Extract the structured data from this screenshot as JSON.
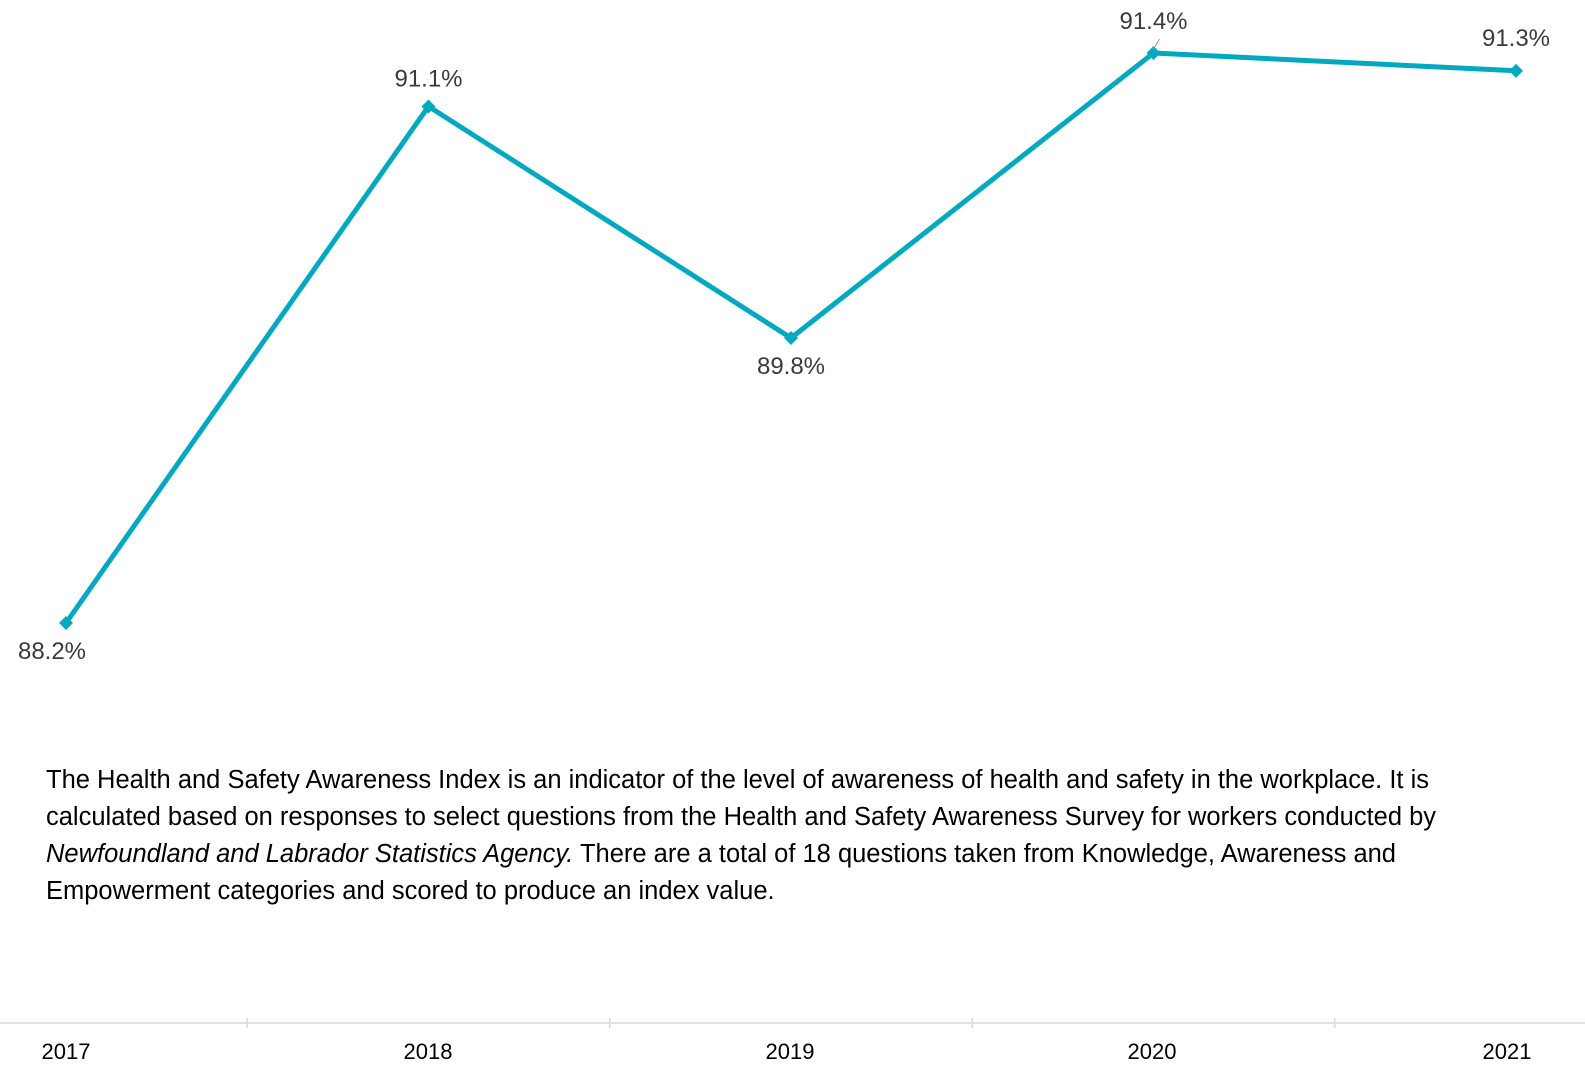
{
  "chart_data": {
    "type": "line",
    "categories": [
      "2017",
      "2018",
      "2019",
      "2020",
      "2021"
    ],
    "series": [
      {
        "values": [
          88.2,
          91.1,
          89.8,
          91.4,
          91.3
        ]
      }
    ],
    "data_labels": [
      "88.2%",
      "91.1%",
      "89.8%",
      "91.4%",
      "91.3%"
    ],
    "line_color": "#00a9c0",
    "marker": "diamond",
    "grid": false,
    "legend": "none"
  },
  "description": {
    "part1": "The Health and Safety Awareness Index is an indicator of the level of awareness of health and safety in the workplace. It is calculated based on responses to select questions from the Health and Safety Awareness Survey for workers conducted by ",
    "agency": "Newfoundland and Labrador Statistics Agency.",
    "part2": " There are a total of 18 questions taken from Knowledge, Awareness and Empowerment categories and scored to produce an index value."
  }
}
